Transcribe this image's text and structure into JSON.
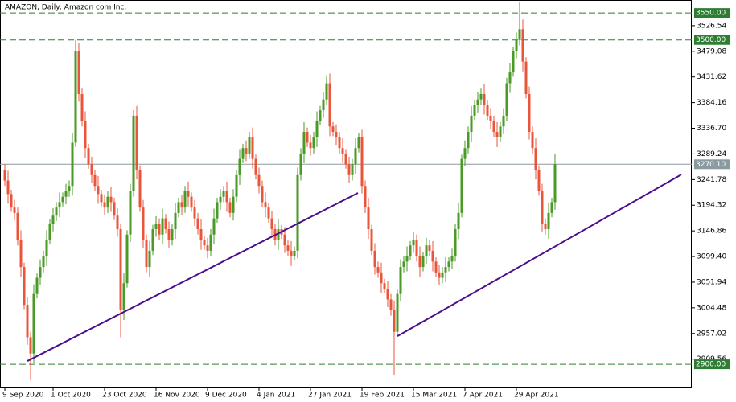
{
  "chart_data": {
    "type": "candlestick",
    "title": "AMAZON, Daily:  Amazon com Inc.",
    "ylim": [
      2857,
      3574
    ],
    "yticks": [
      3526.54,
      3479.08,
      3431.62,
      3384.16,
      {
        "value": 3336.7,
        "label": "3336.70"
      },
      3289.24,
      3241.78,
      3194.32,
      3146.86,
      {
        "value": 3099.4,
        "label": "3099.40"
      },
      3051.94,
      3004.48,
      2957.02,
      2909.56
    ],
    "up_color": "#4a9a26",
    "down_color": "#e8553a",
    "levels": [
      {
        "value": 3550,
        "label": "3550.00",
        "color": "#2e7d32",
        "style": "dashed"
      },
      {
        "value": 3500,
        "label": "3500.00",
        "color": "#2e7d32",
        "style": "dashed"
      },
      {
        "value": 3270.1,
        "label": "3270.10",
        "color": "#8a9aa0",
        "style": "solid"
      },
      {
        "value": 2900,
        "label": "2900.00",
        "color": "#2e7d32",
        "style": "dashed"
      }
    ],
    "trendlines": [
      {
        "x": [
          7,
          109.75
        ],
        "y": [
          2906,
          3217
        ],
        "color": "#4b0f8c"
      },
      {
        "x": [
          122,
          210.25
        ],
        "y": [
          2952,
          3251
        ],
        "color": "#4b0f8c"
      }
    ],
    "categories": [
      "9 Sep 2020",
      null,
      null,
      null,
      null,
      null,
      null,
      null,
      null,
      null,
      null,
      null,
      null,
      null,
      null,
      "1 Oct 2020",
      null,
      null,
      null,
      null,
      null,
      null,
      null,
      null,
      null,
      null,
      null,
      null,
      null,
      null,
      null,
      "23 Oct 2020",
      null,
      null,
      null,
      null,
      null,
      null,
      null,
      null,
      null,
      null,
      null,
      null,
      null,
      null,
      null,
      "16 Nov 2020",
      null,
      null,
      null,
      null,
      null,
      null,
      null,
      null,
      null,
      null,
      null,
      null,
      null,
      null,
      null,
      "9 Dec 2020",
      null,
      null,
      null,
      null,
      null,
      null,
      null,
      null,
      null,
      null,
      null,
      null,
      null,
      null,
      null,
      "4 Jan 2021",
      null,
      null,
      null,
      null,
      null,
      null,
      null,
      null,
      null,
      null,
      null,
      null,
      null,
      null,
      null,
      "27 Jan 2021",
      null,
      null,
      null,
      null,
      null,
      null,
      null,
      null,
      null,
      null,
      null,
      null,
      null,
      null,
      null,
      "19 Feb 2021",
      null,
      null,
      null,
      null,
      null,
      null,
      null,
      null,
      null,
      null,
      null,
      null,
      null,
      null,
      null,
      "15 Mar 2021",
      null,
      null,
      null,
      null,
      null,
      null,
      null,
      null,
      null,
      null,
      null,
      null,
      null,
      null,
      null,
      "7 Apr 2021",
      null,
      null,
      null,
      null,
      null,
      null,
      null,
      null,
      null,
      null,
      null,
      null,
      null,
      null,
      null,
      "29 Apr 2021",
      null,
      null,
      null,
      null,
      null,
      null,
      null,
      null,
      null,
      null,
      null,
      null
    ],
    "candles": [
      [
        3260,
        3270,
        3230,
        3240
      ],
      [
        3240,
        3258,
        3197,
        3215
      ],
      [
        3215,
        3223,
        3182,
        3190
      ],
      [
        3190,
        3204,
        3166,
        3180
      ],
      [
        3180,
        3190,
        3120,
        3130
      ],
      [
        3130,
        3148,
        3062,
        3080
      ],
      [
        3080,
        3088,
        3002,
        3010
      ],
      [
        3010,
        3024,
        2936,
        2950
      ],
      [
        2950,
        2960,
        2870,
        2920
      ],
      [
        2920,
        3048,
        2902,
        3030
      ],
      [
        3030,
        3068,
        3022,
        3060
      ],
      [
        3060,
        3094,
        3046,
        3080
      ],
      [
        3080,
        3110,
        3070,
        3100
      ],
      [
        3100,
        3148,
        3082,
        3130
      ],
      [
        3130,
        3168,
        3122,
        3160
      ],
      [
        3160,
        3189,
        3146,
        3175
      ],
      [
        3175,
        3200,
        3165,
        3190
      ],
      [
        3190,
        3218,
        3172,
        3200
      ],
      [
        3200,
        3218,
        3192,
        3210
      ],
      [
        3210,
        3234,
        3196,
        3220
      ],
      [
        3220,
        3240,
        3210,
        3230
      ],
      [
        3230,
        3328,
        3212,
        3310
      ],
      [
        3310,
        3500,
        3302,
        3480
      ],
      [
        3480,
        3494,
        3386,
        3400
      ],
      [
        3400,
        3410,
        3340,
        3350
      ],
      [
        3350,
        3368,
        3282,
        3300
      ],
      [
        3300,
        3308,
        3262,
        3270
      ],
      [
        3270,
        3284,
        3236,
        3250
      ],
      [
        3250,
        3260,
        3220,
        3230
      ],
      [
        3230,
        3248,
        3197,
        3215
      ],
      [
        3215,
        3223,
        3192,
        3200
      ],
      [
        3200,
        3214,
        3176,
        3190
      ],
      [
        3190,
        3220,
        3180,
        3210
      ],
      [
        3210,
        3228,
        3182,
        3200
      ],
      [
        3200,
        3208,
        3167,
        3175
      ],
      [
        3175,
        3189,
        3136,
        3150
      ],
      [
        3150,
        3160,
        2950,
        3000
      ],
      [
        3000,
        3068,
        2982,
        3050
      ],
      [
        3050,
        3148,
        3042,
        3140
      ],
      [
        3140,
        3234,
        3126,
        3220
      ],
      [
        3220,
        3370,
        3210,
        3360
      ],
      [
        3360,
        3378,
        3242,
        3260
      ],
      [
        3260,
        3268,
        3182,
        3190
      ],
      [
        3190,
        3204,
        3116,
        3130
      ],
      [
        3130,
        3140,
        3070,
        3080
      ],
      [
        3080,
        3128,
        3062,
        3110
      ],
      [
        3110,
        3158,
        3102,
        3150
      ],
      [
        3150,
        3174,
        3136,
        3160
      ],
      [
        3160,
        3170,
        3130,
        3140
      ],
      [
        3140,
        3188,
        3122,
        3170
      ],
      [
        3170,
        3178,
        3142,
        3150
      ],
      [
        3150,
        3164,
        3116,
        3130
      ],
      [
        3130,
        3160,
        3120,
        3150
      ],
      [
        3150,
        3198,
        3132,
        3180
      ],
      [
        3180,
        3208,
        3172,
        3200
      ],
      [
        3200,
        3214,
        3176,
        3190
      ],
      [
        3190,
        3230,
        3180,
        3220
      ],
      [
        3220,
        3238,
        3192,
        3210
      ],
      [
        3210,
        3218,
        3182,
        3190
      ],
      [
        3190,
        3204,
        3156,
        3170
      ],
      [
        3170,
        3180,
        3140,
        3150
      ],
      [
        3150,
        3168,
        3112,
        3130
      ],
      [
        3130,
        3138,
        3112,
        3120
      ],
      [
        3120,
        3134,
        3096,
        3110
      ],
      [
        3110,
        3150,
        3100,
        3140
      ],
      [
        3140,
        3188,
        3122,
        3170
      ],
      [
        3170,
        3208,
        3162,
        3200
      ],
      [
        3200,
        3224,
        3186,
        3210
      ],
      [
        3210,
        3230,
        3200,
        3220
      ],
      [
        3220,
        3238,
        3182,
        3200
      ],
      [
        3200,
        3208,
        3172,
        3180
      ],
      [
        3180,
        3224,
        3166,
        3210
      ],
      [
        3210,
        3260,
        3200,
        3250
      ],
      [
        3250,
        3298,
        3232,
        3280
      ],
      [
        3280,
        3308,
        3272,
        3300
      ],
      [
        3300,
        3314,
        3276,
        3290
      ],
      [
        3290,
        3330,
        3280,
        3320
      ],
      [
        3320,
        3338,
        3262,
        3280
      ],
      [
        3280,
        3288,
        3242,
        3250
      ],
      [
        3250,
        3264,
        3216,
        3230
      ],
      [
        3230,
        3240,
        3190,
        3200
      ],
      [
        3200,
        3218,
        3172,
        3190
      ],
      [
        3190,
        3198,
        3162,
        3170
      ],
      [
        3170,
        3184,
        3136,
        3150
      ],
      [
        3150,
        3160,
        3120,
        3130
      ],
      [
        3130,
        3168,
        3112,
        3150
      ],
      [
        3150,
        3158,
        3132,
        3140
      ],
      [
        3140,
        3154,
        3106,
        3120
      ],
      [
        3120,
        3130,
        3100,
        3110
      ],
      [
        3110,
        3128,
        3082,
        3100
      ],
      [
        3100,
        3118,
        3092,
        3110
      ],
      [
        3110,
        3264,
        3096,
        3250
      ],
      [
        3250,
        3300,
        3240,
        3290
      ],
      [
        3290,
        3348,
        3272,
        3330
      ],
      [
        3330,
        3338,
        3302,
        3310
      ],
      [
        3310,
        3324,
        3286,
        3300
      ],
      [
        3300,
        3330,
        3290,
        3320
      ],
      [
        3320,
        3368,
        3302,
        3350
      ],
      [
        3350,
        3378,
        3342,
        3370
      ],
      [
        3370,
        3404,
        3356,
        3390
      ],
      [
        3390,
        3435,
        3380,
        3420
      ],
      [
        3420,
        3438,
        3322,
        3340
      ],
      [
        3340,
        3348,
        3322,
        3330
      ],
      [
        3330,
        3344,
        3306,
        3320
      ],
      [
        3320,
        3330,
        3290,
        3300
      ],
      [
        3300,
        3318,
        3272,
        3290
      ],
      [
        3290,
        3298,
        3262,
        3270
      ],
      [
        3270,
        3284,
        3236,
        3250
      ],
      [
        3250,
        3280,
        3240,
        3270
      ],
      [
        3270,
        3318,
        3252,
        3300
      ],
      [
        3300,
        3328,
        3292,
        3320
      ],
      [
        3320,
        3334,
        3216,
        3230
      ],
      [
        3230,
        3240,
        3180,
        3190
      ],
      [
        3190,
        3208,
        3132,
        3150
      ],
      [
        3150,
        3158,
        3102,
        3110
      ],
      [
        3110,
        3124,
        3066,
        3080
      ],
      [
        3080,
        3090,
        3060,
        3070
      ],
      [
        3070,
        3088,
        3032,
        3050
      ],
      [
        3050,
        3058,
        3032,
        3040
      ],
      [
        3040,
        3054,
        3006,
        3020
      ],
      [
        3020,
        3030,
        2990,
        3000
      ],
      [
        3000,
        3018,
        2880,
        2960
      ],
      [
        2960,
        3038,
        2952,
        3030
      ],
      [
        3030,
        3094,
        3016,
        3080
      ],
      [
        3080,
        3100,
        3070,
        3090
      ],
      [
        3090,
        3118,
        3072,
        3100
      ],
      [
        3100,
        3128,
        3092,
        3120
      ],
      [
        3120,
        3144,
        3106,
        3130
      ],
      [
        3130,
        3140,
        3090,
        3100
      ],
      [
        3100,
        3118,
        3062,
        3080
      ],
      [
        3080,
        3108,
        3072,
        3100
      ],
      [
        3100,
        3134,
        3086,
        3120
      ],
      [
        3120,
        3130,
        3100,
        3110
      ],
      [
        3110,
        3128,
        3072,
        3090
      ],
      [
        3090,
        3098,
        3062,
        3070
      ],
      [
        3070,
        3084,
        3046,
        3060
      ],
      [
        3060,
        3080,
        3050,
        3070
      ],
      [
        3070,
        3098,
        3052,
        3080
      ],
      [
        3080,
        3098,
        3072,
        3090
      ],
      [
        3090,
        3114,
        3076,
        3100
      ],
      [
        3100,
        3160,
        3090,
        3150
      ],
      [
        3150,
        3198,
        3132,
        3180
      ],
      [
        3180,
        3288,
        3172,
        3280
      ],
      [
        3280,
        3314,
        3266,
        3300
      ],
      [
        3300,
        3340,
        3290,
        3330
      ],
      [
        3330,
        3378,
        3312,
        3360
      ],
      [
        3360,
        3388,
        3352,
        3380
      ],
      [
        3380,
        3404,
        3366,
        3390
      ],
      [
        3390,
        3410,
        3380,
        3400
      ],
      [
        3400,
        3418,
        3362,
        3380
      ],
      [
        3380,
        3388,
        3352,
        3360
      ],
      [
        3360,
        3374,
        3336,
        3350
      ],
      [
        3350,
        3360,
        3320,
        3330
      ],
      [
        3330,
        3348,
        3302,
        3320
      ],
      [
        3320,
        3348,
        3312,
        3340
      ],
      [
        3340,
        3374,
        3326,
        3360
      ],
      [
        3360,
        3430,
        3350,
        3420
      ],
      [
        3420,
        3458,
        3402,
        3440
      ],
      [
        3440,
        3488,
        3432,
        3480
      ],
      [
        3480,
        3514,
        3466,
        3500
      ],
      [
        3500,
        3570,
        3490,
        3520
      ],
      [
        3520,
        3538,
        3442,
        3460
      ],
      [
        3460,
        3468,
        3392,
        3400
      ],
      [
        3400,
        3414,
        3316,
        3330
      ],
      [
        3330,
        3340,
        3290,
        3300
      ],
      [
        3300,
        3318,
        3242,
        3260
      ],
      [
        3260,
        3268,
        3212,
        3220
      ],
      [
        3220,
        3234,
        3146,
        3160
      ],
      [
        3160,
        3170,
        3140,
        3150
      ],
      [
        3150,
        3198,
        3132,
        3180
      ],
      [
        3180,
        3208,
        3172,
        3200
      ],
      [
        3200,
        3290,
        3186,
        3270
      ]
    ]
  }
}
